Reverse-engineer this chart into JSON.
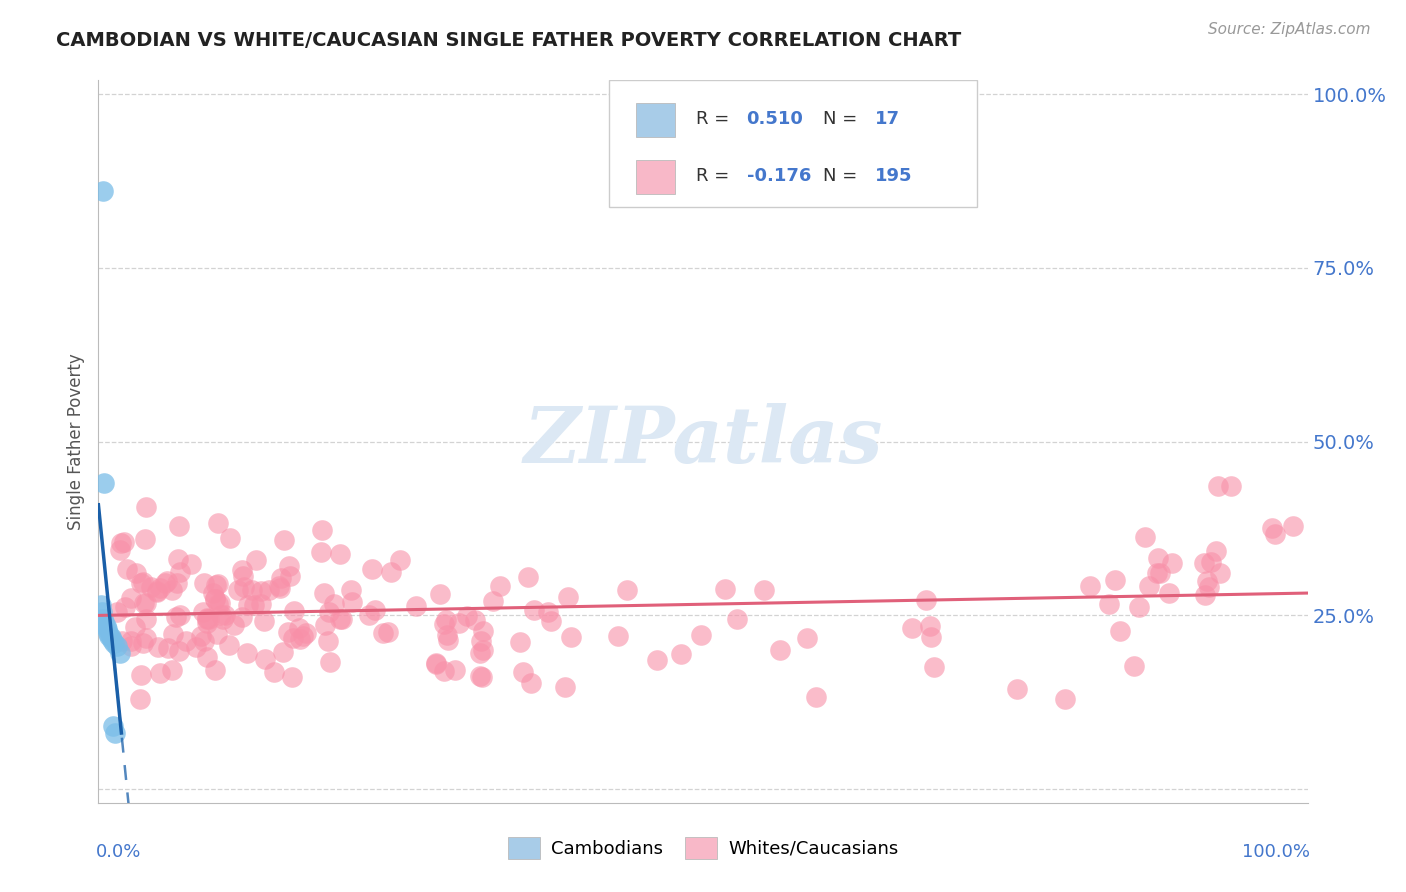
{
  "title": "CAMBODIAN VS WHITE/CAUCASIAN SINGLE FATHER POVERTY CORRELATION CHART",
  "source": "Source: ZipAtlas.com",
  "ylabel": "Single Father Poverty",
  "cambodian_color": "#7abde8",
  "cambodian_edge": "none",
  "white_color": "#f890a8",
  "white_edge": "none",
  "trend_cambodian_color": "#1a5fa8",
  "trend_white_color": "#e0607a",
  "background_color": "#ffffff",
  "grid_color": "#c8c8c8",
  "title_color": "#222222",
  "source_color": "#999999",
  "r_label_color": "#333333",
  "rn_value_color": "#4477cc",
  "legend_blue_patch": "#a8cce8",
  "legend_pink_patch": "#f8b8c8",
  "watermark_color": "#dce8f4",
  "r_value_blue": "0.510",
  "n_blue": "17",
  "r_value_pink": "-0.176",
  "n_pink": "195",
  "seed_blue": 77,
  "seed_pink": 55,
  "figsize": [
    14.06,
    8.92
  ],
  "dpi": 100
}
